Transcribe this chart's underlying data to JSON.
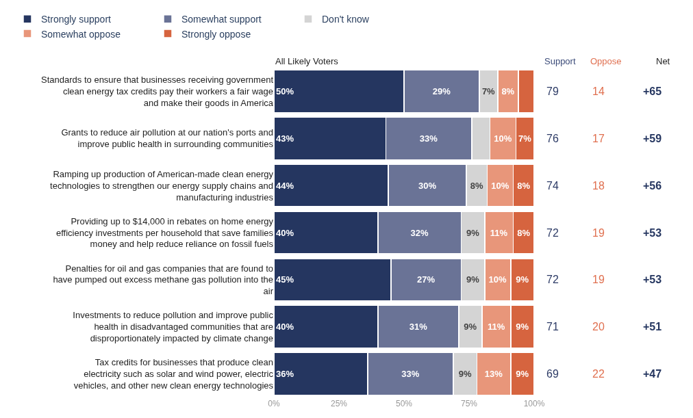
{
  "chart_data": {
    "type": "bar",
    "orientation": "horizontal",
    "stacked": true,
    "legend": "top",
    "categories": [
      "Standards to ensure that businesses receiving government clean energy tax credits pay their workers a fair wage and make their goods in America",
      "Grants to reduce air pollution at our nation's ports and improve public health in surrounding communities",
      "Ramping up production of American-made clean energy technologies to strengthen our energy supply chains and manufacturing industries",
      "Providing up to $14,000 in rebates on home energy efficiency investments per household that save families money and help reduce reliance on fossil fuels",
      "Penalties for oil and gas companies that are found to have pumped out excess methane gas pollution into the air",
      "Investments to reduce pollution and improve public health in disadvantaged communities that are disproportionately impacted by climate change",
      "Tax credits for businesses that produce clean electricity such as solar and wind power, electric vehicles, and other new clean energy technologies"
    ],
    "series": [
      {
        "name": "Strongly support",
        "color": "#253660",
        "values": [
          50,
          43,
          44,
          40,
          45,
          40,
          36
        ],
        "value_labels": [
          "50%",
          "43%",
          "44%",
          "40%",
          "45%",
          "40%",
          "36%"
        ]
      },
      {
        "name": "Somewhat support",
        "color": "#6a7396",
        "values": [
          29,
          33,
          30,
          32,
          27,
          31,
          33
        ],
        "value_labels": [
          "29%",
          "33%",
          "30%",
          "32%",
          "27%",
          "31%",
          "33%"
        ]
      },
      {
        "name": "Don't know",
        "color": "#d4d4d4",
        "values": [
          7,
          7,
          8,
          9,
          9,
          9,
          9
        ],
        "value_labels": [
          "7%",
          null,
          "8%",
          "9%",
          "9%",
          "9%",
          "9%"
        ]
      },
      {
        "name": "Somewhat oppose",
        "color": "#e8967a",
        "values": [
          8,
          10,
          10,
          11,
          10,
          11,
          13
        ],
        "value_labels": [
          "8%",
          "10%",
          "10%",
          "11%",
          "10%",
          "11%",
          "13%"
        ]
      },
      {
        "name": "Strongly oppose",
        "color": "#d6643f",
        "values": [
          6,
          7,
          8,
          8,
          9,
          9,
          9
        ],
        "value_labels": [
          null,
          "7%",
          "8%",
          "8%",
          "9%",
          "9%",
          "9%"
        ]
      }
    ],
    "xlim": [
      0,
      100
    ],
    "xticks": [
      {
        "value": 0,
        "label": "0%"
      },
      {
        "value": 25,
        "label": "25%"
      },
      {
        "value": 50,
        "label": "50%"
      },
      {
        "value": 75,
        "label": "75%"
      },
      {
        "value": 100,
        "label": "100%"
      }
    ],
    "annotations": [
      "All Likely Voters",
      "Support",
      "Oppose",
      "Net",
      "79",
      "14",
      "+65",
      "76",
      "17",
      "+59",
      "74",
      "18",
      "+56",
      "72",
      "19",
      "+53",
      "72",
      "19",
      "+53",
      "71",
      "20",
      "+51",
      "69",
      "22",
      "+47"
    ]
  }
}
